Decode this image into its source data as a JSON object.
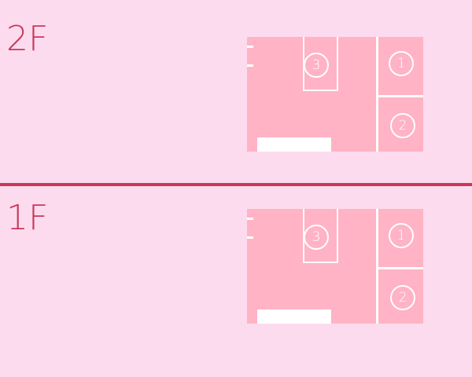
{
  "floors": [
    {
      "label": "2F",
      "rooms": {
        "room1": "1",
        "room2": "2",
        "room3": "3"
      }
    },
    {
      "label": "1F",
      "rooms": {
        "room1": "1",
        "room2": "2",
        "room3": "3"
      }
    }
  ],
  "colors": {
    "background": "#fddbef",
    "label": "#c8395a",
    "divider": "#c8395a",
    "plan_fill": "#ffb3c4",
    "plan_lines": "#ffffff"
  }
}
